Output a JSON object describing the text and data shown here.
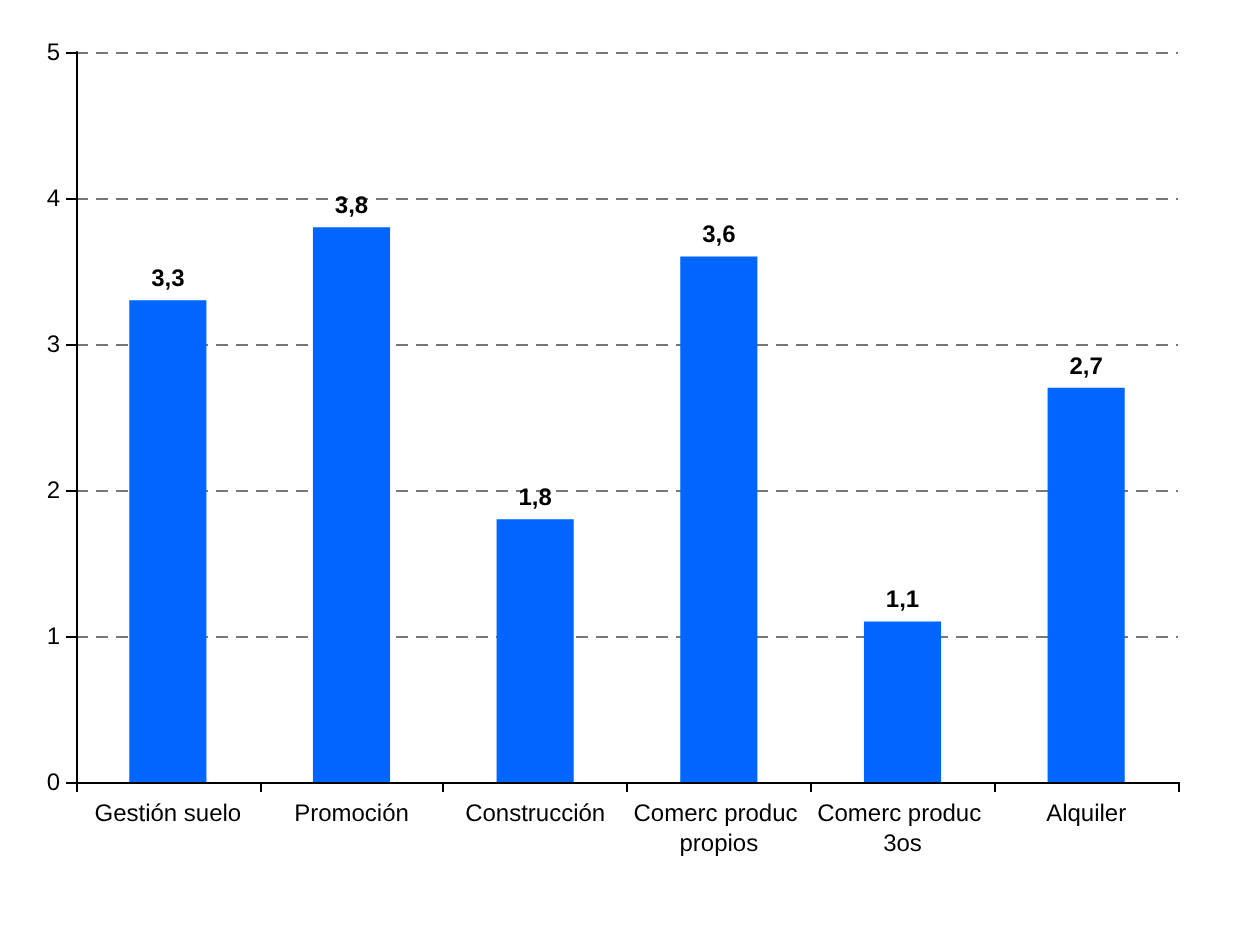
{
  "chart_data": {
    "type": "bar",
    "categories": [
      "Gestión suelo",
      "Promoción",
      "Construcción",
      "Comerc produc propios",
      "Comerc produc 3os",
      "Alquiler"
    ],
    "values": [
      3.3,
      3.8,
      1.8,
      3.6,
      1.1,
      2.7
    ],
    "value_labels": [
      "3,3",
      "3,8",
      "1,8",
      "3,6",
      "1,1",
      "2,7"
    ],
    "color": "#0066ff",
    "ylim": [
      0,
      5
    ],
    "yticks": [
      0,
      1,
      2,
      3,
      4,
      5
    ],
    "grid": "y"
  }
}
